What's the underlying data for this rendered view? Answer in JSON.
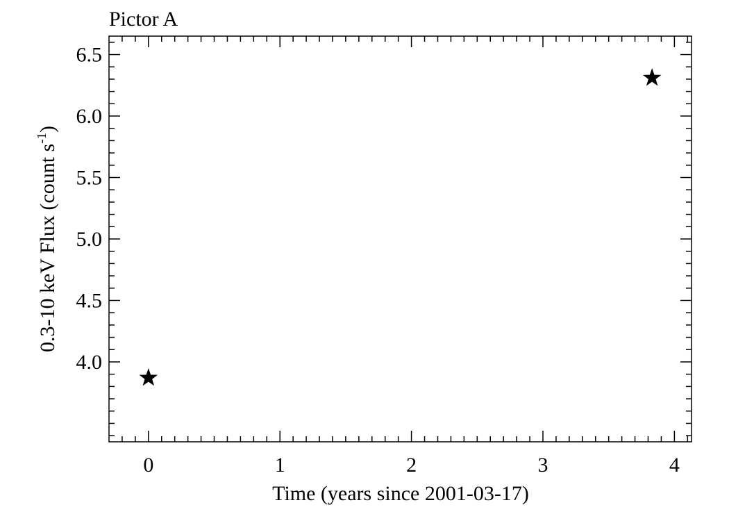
{
  "chart_data": {
    "type": "scatter",
    "title": "Pictor A",
    "xlabel": "Time (years since 2001-03-17)",
    "ylabel": {
      "main": "0.3-10 keV Flux (count s",
      "sup": "-1",
      "close": ")"
    },
    "xlim": [
      -0.3,
      4.13
    ],
    "ylim": [
      3.35,
      6.65
    ],
    "xticks": [
      0,
      1,
      2,
      3,
      4
    ],
    "xtick_labels": [
      "0",
      "1",
      "2",
      "3",
      "4"
    ],
    "x_minor_step": 0.1,
    "yticks": [
      4.0,
      4.5,
      5.0,
      5.5,
      6.0,
      6.5
    ],
    "ytick_labels": [
      "4.0",
      "4.5",
      "5.0",
      "5.5",
      "6.0",
      "6.5"
    ],
    "y_minor_step": 0.1,
    "grid": false,
    "marker": "star",
    "color": "#000000",
    "points": [
      {
        "x": 0.0,
        "y": 3.87
      },
      {
        "x": 3.83,
        "y": 6.31
      }
    ]
  }
}
